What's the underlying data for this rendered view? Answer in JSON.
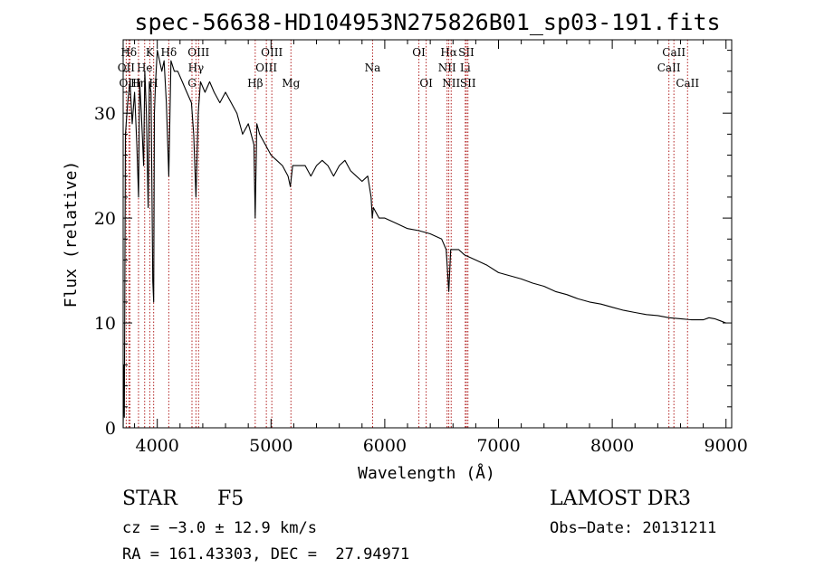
{
  "chart_data": {
    "type": "line",
    "title": "spec-56638-HD104953N275826B01_sp03-191.fits",
    "xlabel": "Wavelength (Å)",
    "ylabel": "Flux (relative)",
    "xlim": [
      3700,
      9050
    ],
    "ylim": [
      0,
      37
    ],
    "xticks": [
      4000,
      5000,
      6000,
      7000,
      8000,
      9000
    ],
    "yticks": [
      0,
      10,
      20,
      30
    ],
    "series": [
      {
        "name": "flux",
        "x": [
          3700,
          3705,
          3710,
          3720,
          3740,
          3760,
          3780,
          3800,
          3820,
          3835,
          3845,
          3860,
          3880,
          3890,
          3905,
          3920,
          3930,
          3945,
          3960,
          3968,
          3975,
          3985,
          4000,
          4020,
          4040,
          4060,
          4080,
          4101,
          4120,
          4150,
          4180,
          4220,
          4260,
          4300,
          4320,
          4340,
          4360,
          4380,
          4420,
          4460,
          4500,
          4550,
          4600,
          4650,
          4700,
          4750,
          4800,
          4850,
          4861,
          4875,
          4900,
          4950,
          5000,
          5050,
          5100,
          5150,
          5170,
          5190,
          5250,
          5300,
          5350,
          5400,
          5450,
          5500,
          5550,
          5600,
          5650,
          5700,
          5750,
          5800,
          5850,
          5880,
          5890,
          5900,
          5950,
          6000,
          6100,
          6200,
          6300,
          6400,
          6500,
          6540,
          6563,
          6580,
          6650,
          6700,
          6800,
          6900,
          7000,
          7100,
          7200,
          7300,
          7400,
          7500,
          7600,
          7700,
          7800,
          7900,
          8000,
          8100,
          8200,
          8300,
          8400,
          8500,
          8600,
          8700,
          8800,
          8850,
          8900,
          8950,
          9000
        ],
        "y": [
          0,
          6,
          1,
          28,
          31,
          33,
          29,
          32,
          27,
          22,
          33,
          30,
          25,
          34,
          30,
          21,
          33,
          32,
          14,
          12,
          30,
          33,
          36,
          35,
          34,
          35,
          31,
          24,
          35,
          34,
          34,
          33,
          32,
          31,
          28,
          22,
          30,
          33,
          32,
          33,
          32,
          31,
          32,
          31,
          30,
          28,
          29,
          27,
          20,
          29,
          28,
          27,
          26,
          25.5,
          25,
          24,
          23,
          25,
          25,
          25,
          24,
          25,
          25.5,
          25,
          24,
          25,
          25.5,
          24.5,
          24,
          23.5,
          24,
          22,
          20,
          21,
          20,
          20,
          19.5,
          19,
          18.8,
          18.5,
          18,
          17,
          13,
          17,
          17,
          16.5,
          16,
          15.5,
          14.8,
          14.5,
          14.2,
          13.8,
          13.5,
          13,
          12.7,
          12.3,
          12,
          11.8,
          11.5,
          11.2,
          11,
          10.8,
          10.7,
          10.5,
          10.4,
          10.3,
          10.3,
          10.5,
          10.4,
          10.2,
          10
        ]
      }
    ],
    "spectral_lines": [
      {
        "label": "Hδ",
        "wavelength": 3750,
        "row": 1
      },
      {
        "label": "OII",
        "wavelength": 3727,
        "row": 2
      },
      {
        "label": "OIII",
        "wavelength": 3760,
        "row": 3
      },
      {
        "label": "K",
        "wavelength": 3934,
        "row": 1
      },
      {
        "label": "He",
        "wavelength": 3889,
        "row": 2
      },
      {
        "label": "Hη",
        "wavelength": 3835,
        "row": 3
      },
      {
        "label": "H",
        "wavelength": 3968,
        "row": 3
      },
      {
        "label": "Hδ",
        "wavelength": 4101,
        "row": 1
      },
      {
        "label": "OIII",
        "wavelength": 4363,
        "row": 1
      },
      {
        "label": "Hγ",
        "wavelength": 4340,
        "row": 2
      },
      {
        "label": "G",
        "wavelength": 4305,
        "row": 3
      },
      {
        "label": "Hβ",
        "wavelength": 4861,
        "row": 3
      },
      {
        "label": "OIII",
        "wavelength": 5007,
        "row": 1
      },
      {
        "label": "OIII",
        "wavelength": 4959,
        "row": 2
      },
      {
        "label": "Mg",
        "wavelength": 5175,
        "row": 3
      },
      {
        "label": "Na",
        "wavelength": 5893,
        "row": 2
      },
      {
        "label": "OI",
        "wavelength": 6300,
        "row": 1
      },
      {
        "label": "OI",
        "wavelength": 6364,
        "row": 3
      },
      {
        "label": "Hα",
        "wavelength": 6563,
        "row": 1
      },
      {
        "label": "NII",
        "wavelength": 6548,
        "row": 2
      },
      {
        "label": "NII",
        "wavelength": 6584,
        "row": 3
      },
      {
        "label": "SII",
        "wavelength": 6717,
        "row": 1
      },
      {
        "label": "Li",
        "wavelength": 6708,
        "row": 2
      },
      {
        "label": "SII",
        "wavelength": 6731,
        "row": 3
      },
      {
        "label": "CaII",
        "wavelength": 8542,
        "row": 1
      },
      {
        "label": "CaII",
        "wavelength": 8498,
        "row": 2
      },
      {
        "label": "CaII",
        "wavelength": 8662,
        "row": 3
      }
    ],
    "line_color": "#000000",
    "marker_color": "#b22222"
  },
  "info": {
    "class": "STAR",
    "subclass": "F5",
    "survey": "LAMOST DR3",
    "cz": "cz = −3.0 ± 12.9 km/s",
    "obs_date": "Obs−Date: 20131211",
    "coords": "RA = 161.43303, DEC =  27.94971"
  }
}
